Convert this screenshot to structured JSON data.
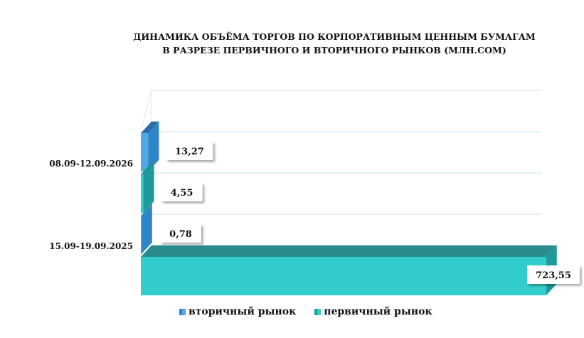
{
  "chart_data": {
    "type": "bar",
    "orientation": "horizontal",
    "three_d": true,
    "title": "ДИНАМИКА ОБЪЁМА ТОРГОВ ПО КОРПОРАТИВНЫМ ЦЕННЫМ БУМАГАМ В РАЗРЕЗЕ ПЕРВИЧНОГО И ВТОРИЧНОГО РЫНКОВ  (МЛН.СОМ)",
    "title_lines": [
      "ДИНАМИКА ОБЪЁМА ТОРГОВ ПО КОРПОРАТИВНЫМ ЦЕННЫМ БУМАГАМ",
      "В РАЗРЕЗЕ ПЕРВИЧНОГО И ВТОРИЧНОГО РЫНКОВ  (МЛН.СОМ)"
    ],
    "categories": [
      "08.09-12.09.2026",
      "15.09-19.09.2025"
    ],
    "series": [
      {
        "name": "вторичный рынок",
        "values": [
          13.27,
          0.78
        ],
        "labels": [
          "13,27",
          "0,78"
        ],
        "color": "#4EA9E6",
        "side_color": "#2E86C8",
        "top_color": "#2A6FA8"
      },
      {
        "name": "первичный рынок",
        "values": [
          4.55,
          723.55
        ],
        "labels": [
          "4,55",
          "723,55"
        ],
        "color": "#33CCCC",
        "side_color": "#1E9A9A",
        "top_color": "#2A8C8C"
      }
    ],
    "xlim": [
      0,
      800
    ],
    "grid": true,
    "axis_labels_visible": false,
    "legend": {
      "position": "bottom"
    }
  }
}
